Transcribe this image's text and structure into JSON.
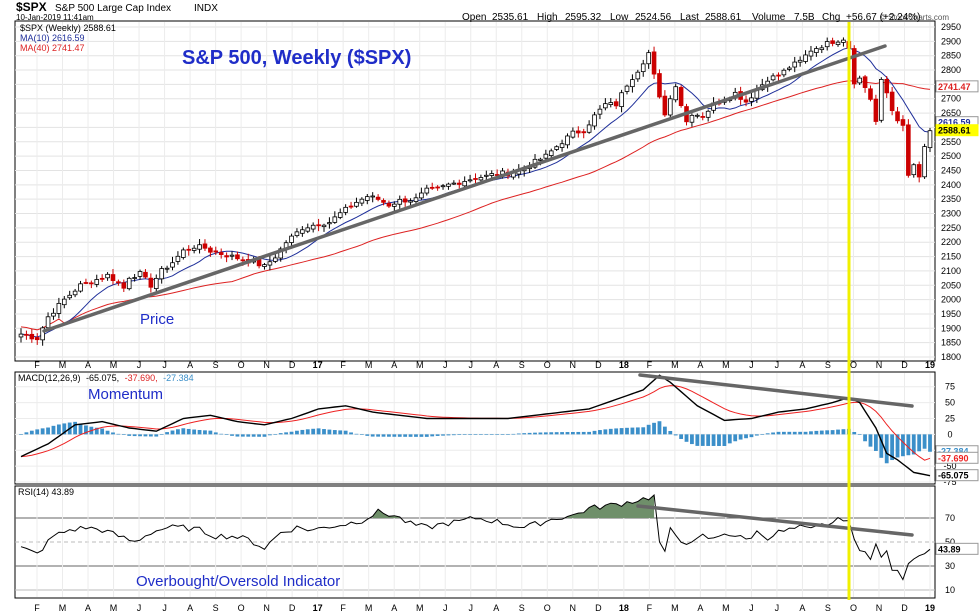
{
  "header": {
    "symbol": "$SPX",
    "name": "S&P 500 Large Cap Index",
    "exchange": "INDX",
    "datetime": "10-Jan-2019 11:41am",
    "open_label": "Open",
    "open": "2535.61",
    "high_label": "High",
    "high": "2595.32",
    "low_label": "Low",
    "low": "2524.56",
    "last_label": "Last",
    "last": "2588.61",
    "volume_label": "Volume",
    "volume": "7.5B",
    "chg_label": "Chg",
    "chg": "+56.67 (+2.24%)",
    "watermark": "© StockCharts.com"
  },
  "legend": {
    "price": "$SPX (Weekly) 2588.61",
    "ma10": "MA(10) 2616.59",
    "ma40": "MA(40) 2741.47",
    "macd_prefix": "MACD(12,26,9)",
    "macd_v1": "-65.075,",
    "macd_v2": "-37.690,",
    "macd_v3": "-27.384",
    "rsi": "RSI(14) 43.89"
  },
  "annotations": {
    "title": "S&P 500, Weekly ($SPX)",
    "price": "Price",
    "momentum": "Momentum",
    "rsi": "Overbought/Oversold Indicator"
  },
  "colors": {
    "up": "#000000",
    "down": "#cc0000",
    "ma10": "#1f2f9a",
    "ma40": "#dd2222",
    "macd": "#000000",
    "signal": "#ee2222",
    "hist": "#3b8fc9",
    "rsi_fill": "#6f8f6a",
    "trend": "#666666",
    "vline": "#f0f000",
    "annot": "#1f2dc8",
    "last_tag": "#ffff00"
  },
  "chart_data": [
    {
      "type": "candlestick",
      "title": "S&P 500, Weekly ($SPX)",
      "ylim": [
        1800,
        2950
      ],
      "y_ticks": [
        1800,
        1850,
        1900,
        1950,
        2000,
        2050,
        2100,
        2150,
        2200,
        2250,
        2300,
        2350,
        2400,
        2450,
        2500,
        2550,
        2600,
        2650,
        2700,
        2750,
        2800,
        2850,
        2900,
        2950
      ],
      "x_tick_labels": [
        "F",
        "M",
        "A",
        "M",
        "J",
        "J",
        "A",
        "S",
        "O",
        "N",
        "D",
        "17",
        "F",
        "M",
        "A",
        "M",
        "J",
        "J",
        "A",
        "S",
        "O",
        "N",
        "D",
        "18",
        "F",
        "M",
        "A",
        "M",
        "J",
        "J",
        "A",
        "S",
        "O",
        "N",
        "D",
        "19"
      ],
      "series": [
        {
          "name": "$SPX (Weekly)",
          "waypoints_x": [
            0,
            3,
            5,
            8,
            11,
            14,
            16,
            18,
            19,
            20,
            22,
            24,
            26,
            28,
            30,
            32,
            34,
            35,
            37,
            40,
            43,
            45,
            47,
            49,
            52,
            55,
            57,
            59,
            62,
            64,
            66,
            68,
            70,
            73,
            75,
            77,
            79,
            81,
            83,
            84,
            86,
            88,
            90,
            92,
            94,
            97,
            100,
            102,
            104,
            106,
            108,
            110,
            112,
            114,
            116,
            118,
            119,
            120,
            121,
            122,
            123,
            124,
            126,
            128,
            130,
            132,
            134,
            136,
            138,
            140,
            142,
            144,
            146,
            148,
            150,
            152,
            153,
            154,
            155,
            156,
            157,
            158,
            159,
            160,
            161,
            162,
            163,
            164,
            165,
            166,
            167,
            168
          ],
          "waypoints_y": [
            1880,
            1865,
            1940,
            2000,
            2050,
            2070,
            2085,
            2060,
            2040,
            2080,
            2090,
            2050,
            2100,
            2130,
            2170,
            2185,
            2180,
            2170,
            2160,
            2145,
            2130,
            2115,
            2150,
            2200,
            2250,
            2265,
            2270,
            2300,
            2340,
            2360,
            2350,
            2330,
            2345,
            2350,
            2380,
            2385,
            2400,
            2410,
            2420,
            2425,
            2430,
            2440,
            2440,
            2450,
            2470,
            2500,
            2550,
            2580,
            2590,
            2640,
            2680,
            2680,
            2750,
            2800,
            2860,
            2700,
            2650,
            2700,
            2750,
            2680,
            2620,
            2650,
            2640,
            2680,
            2700,
            2720,
            2690,
            2730,
            2770,
            2780,
            2810,
            2830,
            2870,
            2885,
            2900,
            2910,
            2880,
            2760,
            2770,
            2740,
            2700,
            2620,
            2760,
            2720,
            2660,
            2630,
            2600,
            2430,
            2470,
            2420,
            2530,
            2588
          ]
        },
        {
          "name": "MA(10)",
          "last": 2616.59
        },
        {
          "name": "MA(40)",
          "last": 2741.47
        }
      ]
    },
    {
      "type": "line",
      "title": "MACD(12,26,9)",
      "ylim": [
        -75,
        95
      ],
      "y_ticks": [
        75,
        50,
        25,
        0,
        -25,
        -50,
        -75
      ],
      "last_values": {
        "macd": -65.075,
        "signal": -37.69,
        "histogram": -27.384
      },
      "series": [
        {
          "name": "MACD",
          "waypoints_x": [
            0,
            5,
            10,
            15,
            20,
            25,
            30,
            35,
            40,
            45,
            50,
            55,
            60,
            65,
            70,
            75,
            80,
            85,
            90,
            95,
            100,
            105,
            110,
            115,
            118,
            120,
            125,
            130,
            135,
            140,
            145,
            150,
            153,
            155,
            158,
            160,
            162,
            165,
            168
          ],
          "waypoints_y": [
            -35,
            -15,
            15,
            20,
            10,
            5,
            25,
            30,
            20,
            15,
            25,
            40,
            45,
            35,
            30,
            25,
            25,
            25,
            25,
            30,
            35,
            40,
            55,
            70,
            93,
            82,
            45,
            22,
            25,
            35,
            40,
            50,
            58,
            50,
            10,
            -30,
            -40,
            -60,
            -65
          ]
        }
      ]
    },
    {
      "type": "line",
      "title": "RSI(14)",
      "ylim": [
        5,
        95
      ],
      "y_ticks": [
        70,
        50,
        30,
        10
      ],
      "last_value": 43.89,
      "series": [
        {
          "name": "RSI(14)",
          "waypoints_x": [
            0,
            3,
            6,
            9,
            12,
            15,
            18,
            21,
            24,
            27,
            30,
            33,
            36,
            39,
            42,
            45,
            48,
            51,
            54,
            57,
            60,
            63,
            66,
            69,
            72,
            75,
            78,
            81,
            84,
            87,
            90,
            93,
            96,
            99,
            102,
            105,
            108,
            111,
            114,
            117,
            118,
            119,
            120,
            122,
            124,
            126,
            128,
            130,
            132,
            134,
            136,
            138,
            140,
            142,
            144,
            146,
            148,
            150,
            152,
            153,
            154,
            155,
            156,
            157,
            158,
            159,
            160,
            161,
            162,
            163,
            164,
            165,
            166,
            167,
            168
          ],
          "waypoints_y": [
            45,
            40,
            55,
            60,
            62,
            60,
            55,
            50,
            58,
            62,
            62,
            60,
            55,
            55,
            52,
            45,
            58,
            62,
            60,
            63,
            65,
            68,
            75,
            72,
            65,
            62,
            65,
            67,
            70,
            68,
            65,
            62,
            66,
            70,
            72,
            78,
            80,
            82,
            85,
            88,
            50,
            40,
            60,
            52,
            48,
            55,
            52,
            58,
            55,
            52,
            58,
            54,
            58,
            60,
            62,
            60,
            64,
            66,
            70,
            68,
            50,
            42,
            44,
            38,
            48,
            36,
            42,
            28,
            24,
            20,
            30,
            38,
            40,
            42,
            44
          ]
        }
      ]
    }
  ]
}
